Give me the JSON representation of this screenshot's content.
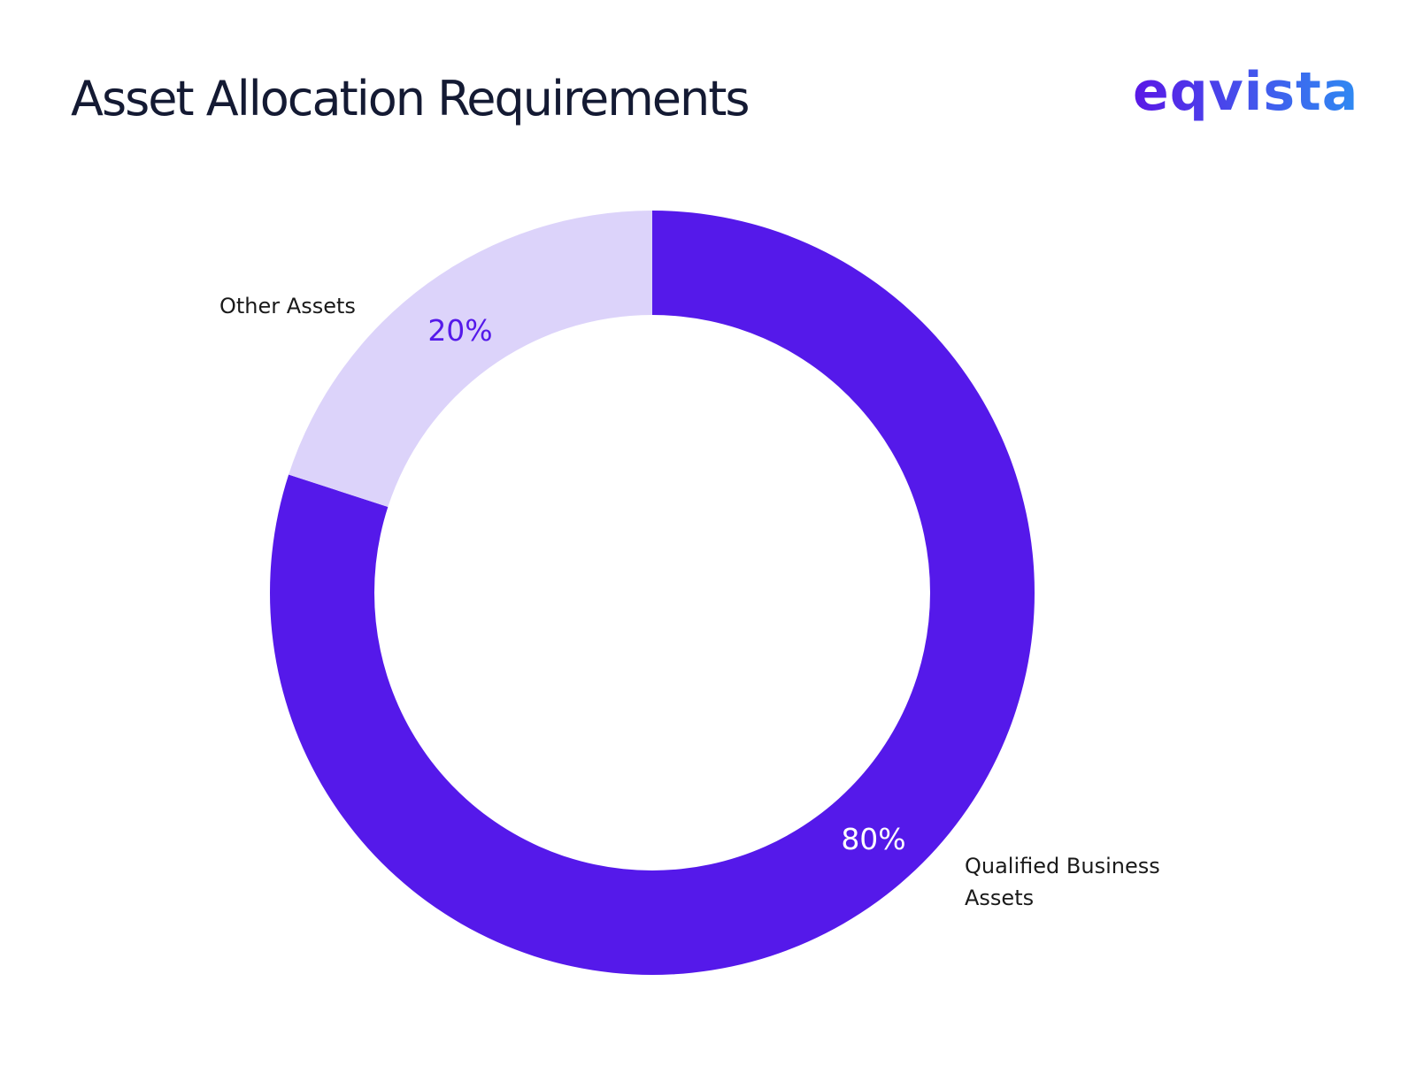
{
  "header": {
    "title": "Asset Allocation Requirements",
    "logo_text": "eqvista"
  },
  "colors": {
    "primary": "#5519ea",
    "secondary": "#dcd3fa",
    "logo_start": "#5a17e6",
    "logo_end": "#2f8bf2",
    "text": "#141a33"
  },
  "chart_data": {
    "type": "pie",
    "style": "donut",
    "title": "Asset Allocation Requirements",
    "series": [
      {
        "name": "Qualified Business Assets",
        "label_lines": [
          "Qualified Business",
          "Assets"
        ],
        "value": 80,
        "label": "80%",
        "color": "#5519ea",
        "value_label_color": "#ffffff"
      },
      {
        "name": "Other Assets",
        "label_lines": [
          "Other Assets"
        ],
        "value": 20,
        "label": "20%",
        "color": "#dcd3fa",
        "value_label_color": "#5519ea"
      }
    ]
  }
}
